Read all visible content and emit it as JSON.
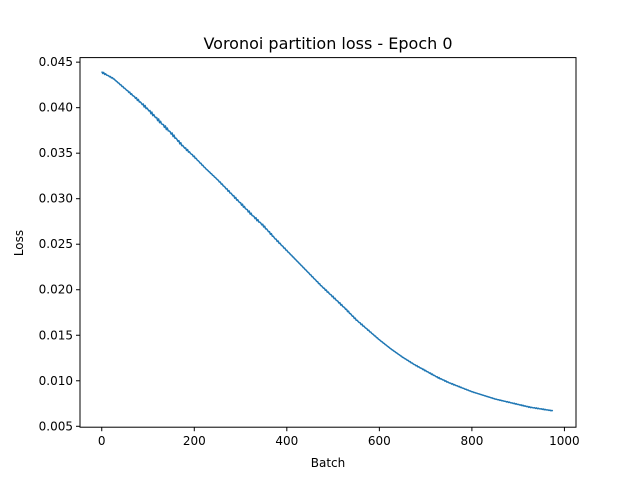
{
  "chart_data": {
    "type": "line",
    "title": "Voronoi partition loss - Epoch 0",
    "xlabel": "Batch",
    "ylabel": "Loss",
    "xlim": [
      -47,
      1025
    ],
    "ylim": [
      0.0049,
      0.0455
    ],
    "x_ticks": [
      0,
      200,
      400,
      600,
      800,
      1000
    ],
    "x_tick_labels": [
      "0",
      "200",
      "400",
      "600",
      "800",
      "1000"
    ],
    "y_ticks": [
      0.005,
      0.01,
      0.015,
      0.02,
      0.025,
      0.03,
      0.035,
      0.04,
      0.045
    ],
    "y_tick_labels": [
      "0.005",
      "0.010",
      "0.015",
      "0.020",
      "0.025",
      "0.030",
      "0.035",
      "0.040",
      "0.045"
    ],
    "grid": false,
    "line_color": "#1f77b4",
    "series": [
      {
        "x": [
          0,
          25,
          50,
          75,
          100,
          125,
          150,
          175,
          200,
          225,
          250,
          275,
          300,
          325,
          350,
          375,
          400,
          425,
          450,
          475,
          500,
          525,
          550,
          575,
          600,
          625,
          650,
          675,
          700,
          725,
          750,
          775,
          800,
          825,
          850,
          875,
          900,
          925,
          950,
          975
        ],
        "values": [
          0.0439,
          0.0432,
          0.0421,
          0.041,
          0.0398,
          0.0385,
          0.0372,
          0.0358,
          0.0346,
          0.0333,
          0.0321,
          0.0308,
          0.0295,
          0.0282,
          0.027,
          0.0256,
          0.0243,
          0.023,
          0.0217,
          0.0204,
          0.0192,
          0.018,
          0.0167,
          0.0156,
          0.0145,
          0.0135,
          0.0126,
          0.0118,
          0.0111,
          0.0104,
          0.0098,
          0.0093,
          0.0088,
          0.0084,
          0.008,
          0.0077,
          0.0074,
          0.0071,
          0.0069,
          0.0067
        ]
      }
    ]
  }
}
